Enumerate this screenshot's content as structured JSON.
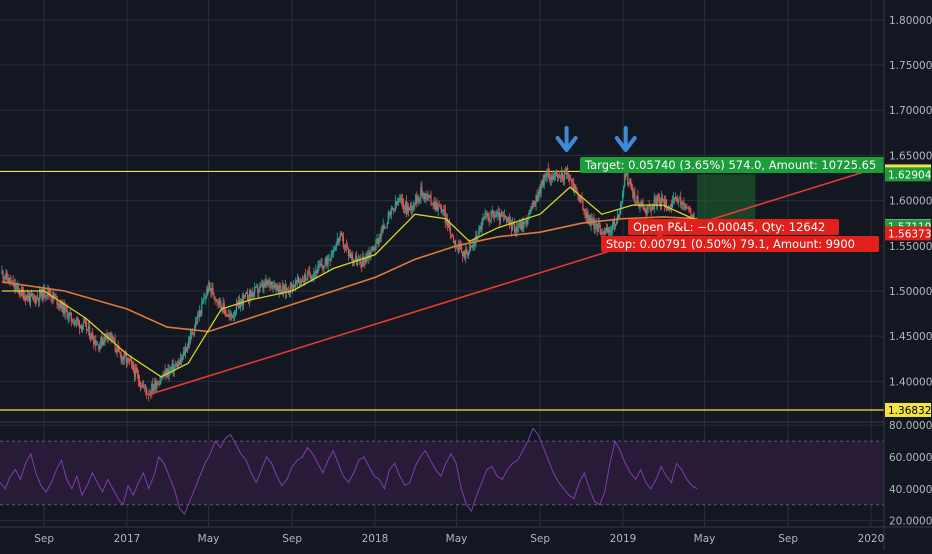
{
  "chart_data": [
    {
      "type": "candlestick",
      "x_ticks": [
        "Sep",
        "2017",
        "May",
        "Sep",
        "2018",
        "May",
        "Sep",
        "2019",
        "May",
        "Sep",
        "2020"
      ],
      "x_tick_dates": [
        "2016-09-01",
        "2017-01-01",
        "2017-05-01",
        "2017-09-01",
        "2018-01-01",
        "2018-05-01",
        "2018-09-01",
        "2019-01-01",
        "2019-05-01",
        "2019-09-01",
        "2020-01-01"
      ],
      "y_ticks": [
        1.4,
        1.45,
        1.5,
        1.55,
        1.6,
        1.65,
        1.7,
        1.75,
        1.8
      ],
      "y_tick_labels": [
        "1.40000",
        "1.45000",
        "1.50000",
        "1.55000",
        "1.60000",
        "1.65000",
        "1.70000",
        "1.75000",
        "1.80000"
      ],
      "ylim": [
        1.355,
        1.822
      ],
      "grid": true,
      "price_path": [
        [
          "2016-07-01",
          1.52
        ],
        [
          "2016-07-25",
          1.5
        ],
        [
          "2016-08-15",
          1.49
        ],
        [
          "2016-09-05",
          1.5
        ],
        [
          "2016-09-20",
          1.49
        ],
        [
          "2016-10-10",
          1.47
        ],
        [
          "2016-11-01",
          1.46
        ],
        [
          "2016-11-20",
          1.44
        ],
        [
          "2016-12-05",
          1.455
        ],
        [
          "2016-12-20",
          1.43
        ],
        [
          "2017-01-05",
          1.42
        ],
        [
          "2017-01-20",
          1.4
        ],
        [
          "2017-02-01",
          1.387
        ],
        [
          "2017-02-15",
          1.4
        ],
        [
          "2017-03-01",
          1.41
        ],
        [
          "2017-03-20",
          1.42
        ],
        [
          "2017-04-05",
          1.45
        ],
        [
          "2017-04-20",
          1.48
        ],
        [
          "2017-05-01",
          1.505
        ],
        [
          "2017-05-15",
          1.49
        ],
        [
          "2017-06-01",
          1.47
        ],
        [
          "2017-06-20",
          1.49
        ],
        [
          "2017-07-10",
          1.5
        ],
        [
          "2017-08-01",
          1.51
        ],
        [
          "2017-08-20",
          1.5
        ],
        [
          "2017-09-10",
          1.51
        ],
        [
          "2017-10-01",
          1.52
        ],
        [
          "2017-10-20",
          1.53
        ],
        [
          "2017-11-10",
          1.56
        ],
        [
          "2017-11-25",
          1.54
        ],
        [
          "2017-12-10",
          1.53
        ],
        [
          "2018-01-01",
          1.55
        ],
        [
          "2018-01-20",
          1.58
        ],
        [
          "2018-02-05",
          1.6
        ],
        [
          "2018-02-20",
          1.59
        ],
        [
          "2018-03-10",
          1.61
        ],
        [
          "2018-03-25",
          1.6
        ],
        [
          "2018-04-10",
          1.59
        ],
        [
          "2018-04-25",
          1.56
        ],
        [
          "2018-05-10",
          1.54
        ],
        [
          "2018-05-25",
          1.55
        ],
        [
          "2018-06-10",
          1.58
        ],
        [
          "2018-06-25",
          1.585
        ],
        [
          "2018-07-10",
          1.58
        ],
        [
          "2018-07-25",
          1.57
        ],
        [
          "2018-08-10",
          1.575
        ],
        [
          "2018-08-25",
          1.6
        ],
        [
          "2018-09-10",
          1.63
        ],
        [
          "2018-09-25",
          1.625
        ],
        [
          "2018-10-10",
          1.63
        ],
        [
          "2018-10-25",
          1.61
        ],
        [
          "2018-11-10",
          1.58
        ],
        [
          "2018-11-25",
          1.57
        ],
        [
          "2018-12-10",
          1.565
        ],
        [
          "2018-12-25",
          1.58
        ],
        [
          "2019-01-05",
          1.63
        ],
        [
          "2019-01-20",
          1.6
        ],
        [
          "2019-02-05",
          1.59
        ],
        [
          "2019-02-20",
          1.6
        ],
        [
          "2019-03-10",
          1.595
        ],
        [
          "2019-03-25",
          1.6
        ],
        [
          "2019-04-10",
          1.585
        ],
        [
          "2019-04-20",
          1.572
        ]
      ],
      "ma_fast_path": [
        [
          "2016-07-01",
          1.5
        ],
        [
          "2016-09-01",
          1.5
        ],
        [
          "2016-11-01",
          1.47
        ],
        [
          "2017-01-01",
          1.43
        ],
        [
          "2017-02-20",
          1.405
        ],
        [
          "2017-04-01",
          1.42
        ],
        [
          "2017-05-20",
          1.48
        ],
        [
          "2017-07-01",
          1.49
        ],
        [
          "2017-09-01",
          1.5
        ],
        [
          "2017-11-01",
          1.525
        ],
        [
          "2018-01-01",
          1.54
        ],
        [
          "2018-03-01",
          1.585
        ],
        [
          "2018-04-15",
          1.58
        ],
        [
          "2018-05-20",
          1.555
        ],
        [
          "2018-07-01",
          1.57
        ],
        [
          "2018-09-01",
          1.585
        ],
        [
          "2018-10-15",
          1.615
        ],
        [
          "2018-12-01",
          1.585
        ],
        [
          "2019-01-15",
          1.595
        ],
        [
          "2019-03-01",
          1.595
        ],
        [
          "2019-04-20",
          1.578
        ]
      ],
      "ma_slow_path": [
        [
          "2016-07-01",
          1.51
        ],
        [
          "2016-10-01",
          1.5
        ],
        [
          "2017-01-01",
          1.48
        ],
        [
          "2017-03-01",
          1.46
        ],
        [
          "2017-05-01",
          1.455
        ],
        [
          "2017-07-01",
          1.47
        ],
        [
          "2017-09-01",
          1.485
        ],
        [
          "2017-11-01",
          1.5
        ],
        [
          "2018-01-01",
          1.515
        ],
        [
          "2018-03-01",
          1.535
        ],
        [
          "2018-05-01",
          1.55
        ],
        [
          "2018-07-01",
          1.56
        ],
        [
          "2018-09-01",
          1.565
        ],
        [
          "2018-11-01",
          1.575
        ],
        [
          "2019-01-01",
          1.58
        ],
        [
          "2019-03-01",
          1.582
        ],
        [
          "2019-04-20",
          1.58
        ]
      ],
      "trendline": {
        "from": [
          "2017-02-01",
          1.385
        ],
        "to": [
          "2019-12-25",
          1.6325
        ],
        "color": "#e53935"
      },
      "horizontal_lines": [
        {
          "value": 1.63229,
          "color": "#f5e342"
        },
        {
          "value": 1.36832,
          "color": "#f5e342"
        }
      ],
      "position": {
        "start": "2019-04-20",
        "end": "2019-07-15",
        "entry": 1.5716,
        "target": 1.629,
        "stop": 1.5637,
        "target_text": "Target: 0.05740 (3.65%) 574.0, Amount: 10725.65",
        "open_pl_text": "Open P&L: −0.00045, Qty: 12642",
        "stop_text": "Stop: 0.00791 (0.50%) 79.1, Amount: 9900"
      },
      "arrow_dates": [
        "2018-10-10",
        "2019-01-05"
      ],
      "axis_badges": [
        {
          "text": "1.63229",
          "value": 1.63229,
          "bg": "#f5e342",
          "fg": "#000000"
        },
        {
          "text": "1.62904",
          "value": 1.62904,
          "bg": "#1b9d3a",
          "fg": "#ffffff"
        },
        {
          "text": "1.57164",
          "value": 1.57164,
          "bg": "#ffffff",
          "fg": "#000000"
        },
        {
          "text": "1.57119",
          "value": 1.57119,
          "bg": "#1b9d3a",
          "fg": "#ffffff"
        },
        {
          "text": "1.56373",
          "value": 1.56373,
          "bg": "#e0201b",
          "fg": "#ffffff"
        },
        {
          "text": "1.36832",
          "value": 1.36832,
          "bg": "#f5e342",
          "fg": "#000000"
        }
      ]
    },
    {
      "type": "line",
      "name": "RSI",
      "y_ticks": [
        20,
        40,
        60,
        80
      ],
      "y_tick_labels": [
        "20.0000",
        "40.0000",
        "60.0000",
        "80.0000"
      ],
      "ylim": [
        16,
        82
      ],
      "bands": [
        30,
        70
      ],
      "values": [
        44,
        40,
        48,
        52,
        46,
        56,
        62,
        50,
        42,
        38,
        44,
        52,
        58,
        46,
        40,
        48,
        36,
        42,
        50,
        44,
        38,
        46,
        40,
        34,
        30,
        42,
        36,
        44,
        50,
        40,
        48,
        60,
        56,
        48,
        40,
        28,
        24,
        32,
        40,
        48,
        56,
        62,
        70,
        66,
        72,
        74,
        68,
        62,
        58,
        50,
        44,
        52,
        60,
        56,
        48,
        42,
        46,
        54,
        58,
        60,
        66,
        62,
        56,
        50,
        58,
        64,
        56,
        48,
        44,
        50,
        58,
        60,
        54,
        48,
        46,
        40,
        52,
        56,
        48,
        42,
        44,
        54,
        60,
        64,
        58,
        52,
        48,
        56,
        62,
        56,
        40,
        30,
        26,
        36,
        44,
        52,
        54,
        48,
        46,
        52,
        56,
        58,
        64,
        70,
        78,
        74,
        66,
        58,
        50,
        44,
        40,
        36,
        34,
        44,
        50,
        40,
        32,
        30,
        38,
        56,
        70,
        64,
        56,
        50,
        46,
        52,
        44,
        40,
        46,
        54,
        48,
        44,
        56,
        52,
        46,
        42,
        40
      ]
    }
  ],
  "colors": {
    "background": "#131722",
    "grid": "#2a2e39",
    "up_candle": "#26a69a",
    "down_candle": "#ef5350",
    "ma_fast": "#d9d426",
    "ma_slow": "#e0793b",
    "rsi_line": "#7e3fae",
    "rsi_band_fill": "#2a1c3b",
    "arrow": "#3f8ad8",
    "target_zone": "#1c5a2a",
    "axis_text": "#b2b5be"
  }
}
